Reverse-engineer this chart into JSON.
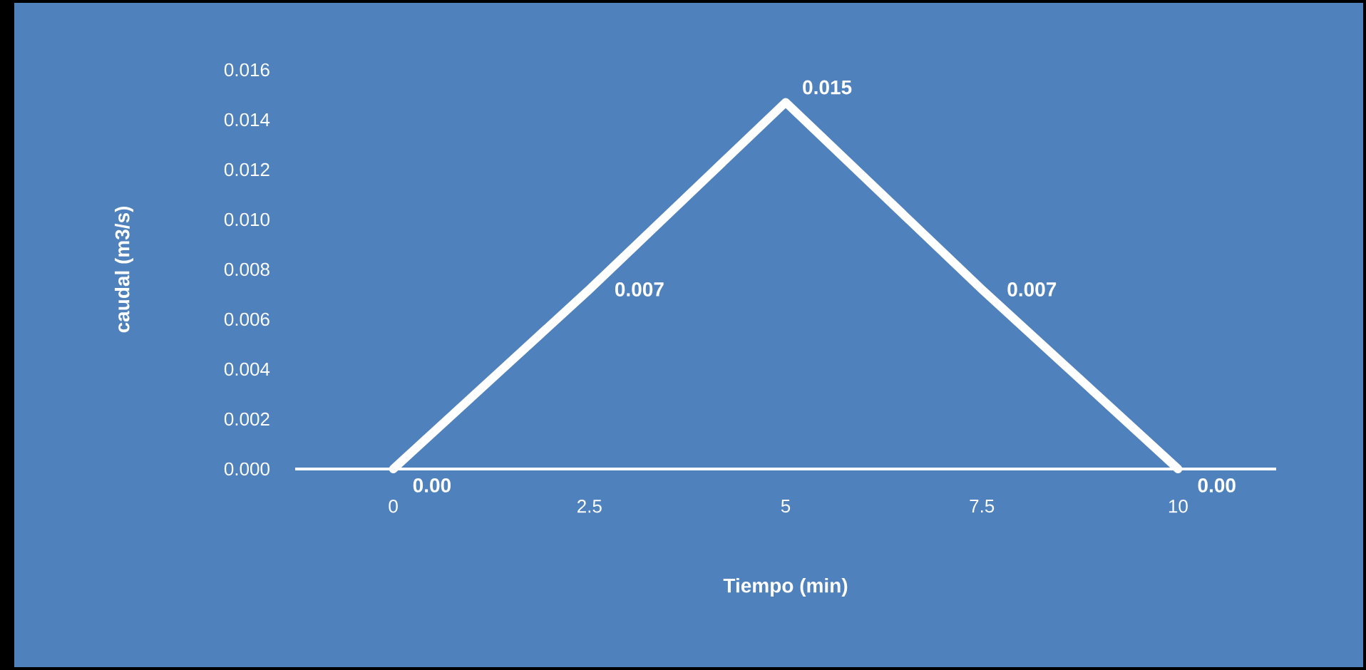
{
  "chart_data": {
    "type": "line",
    "xlabel": "Tiempo (min)",
    "ylabel": "caudal (m3/s)",
    "categories": [
      "0",
      "2.5",
      "5",
      "7.5",
      "10"
    ],
    "values": [
      0,
      0.0072,
      0.0147,
      0.0072,
      0
    ],
    "value_labels": [
      "0.00",
      "0.007",
      "0.015",
      "0.007",
      "0.00"
    ],
    "color": "#ffffff",
    "ylim": [
      0,
      0.016
    ],
    "yticks": [
      {
        "value": 0,
        "label": "0.000"
      },
      0.002,
      0.004,
      0.006,
      0.008,
      {
        "value": 0.01,
        "label": "0.010"
      },
      0.012,
      0.014,
      0.016
    ]
  }
}
